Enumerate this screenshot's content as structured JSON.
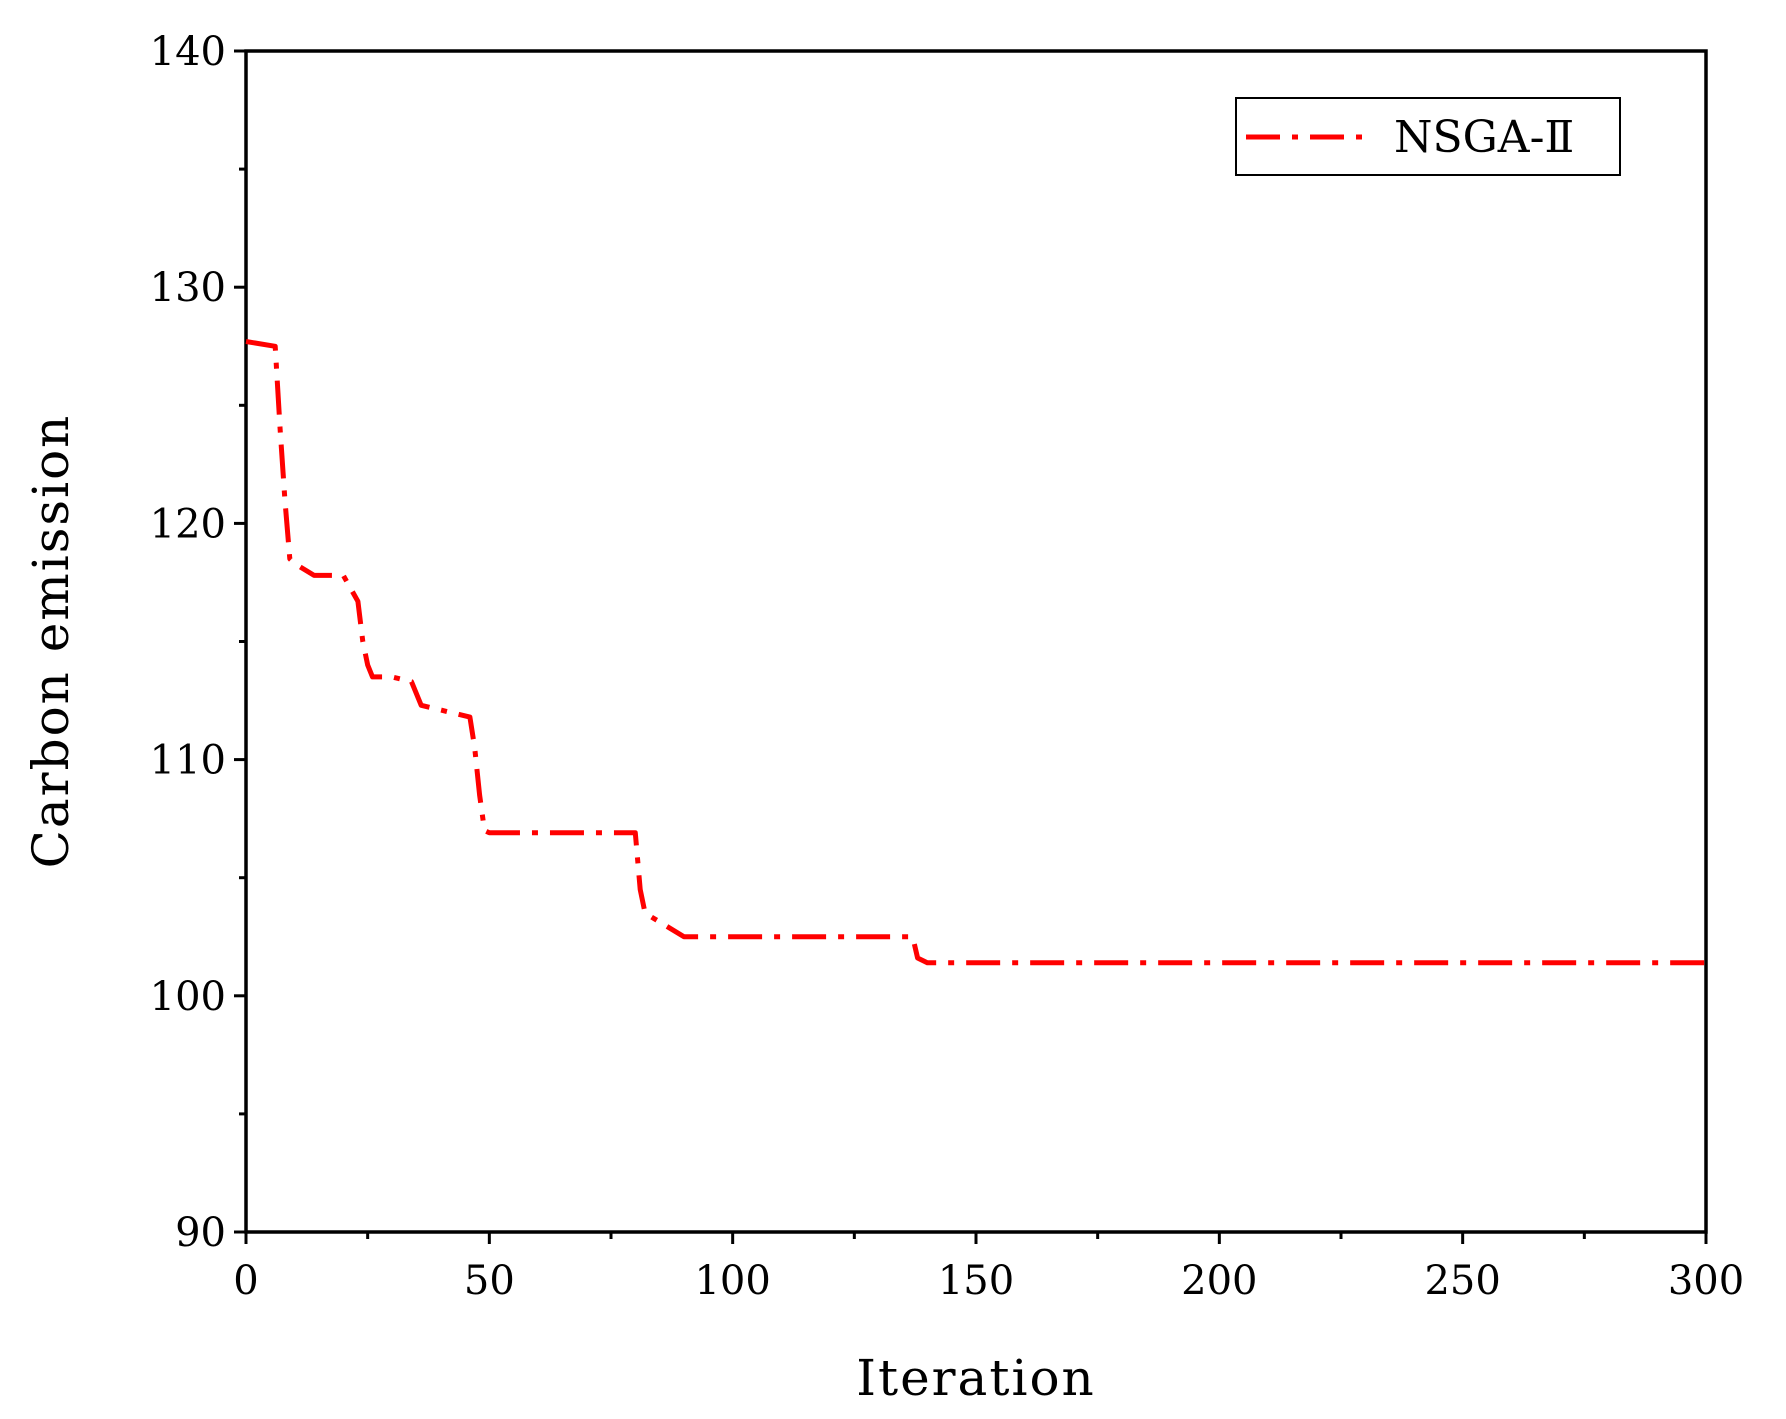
{
  "chart_data": {
    "type": "line",
    "title": "",
    "xlabel": "Iteration",
    "ylabel": "Carbon emission",
    "xlim": [
      0,
      300
    ],
    "ylim": [
      90,
      140
    ],
    "x_ticks": [
      0,
      50,
      100,
      150,
      200,
      250,
      300
    ],
    "y_ticks": [
      90,
      100,
      110,
      120,
      130,
      140
    ],
    "x_tick_labels": [
      "0",
      "50",
      "100",
      "150",
      "200",
      "250",
      "300"
    ],
    "y_tick_labels": [
      "90",
      "100",
      "110",
      "120",
      "130",
      "140"
    ],
    "grid": false,
    "legend_position": "top-right",
    "series": [
      {
        "name": "NSGA-Ⅱ",
        "color": "#ff0000",
        "line_style": "dash-dot",
        "x": [
          0,
          6,
          7,
          8,
          9,
          10,
          14,
          20,
          23,
          24,
          25,
          26,
          30,
          34,
          36,
          40,
          46,
          47,
          48,
          49,
          50,
          55,
          70,
          80,
          81,
          82,
          86,
          90,
          100,
          120,
          137,
          138,
          140,
          150,
          200,
          250,
          300
        ],
        "y": [
          127.7,
          127.5,
          124,
          121,
          118.5,
          118.3,
          117.8,
          117.8,
          116.7,
          115,
          114,
          113.5,
          113.5,
          113.3,
          112.3,
          112.1,
          111.8,
          110.5,
          108.5,
          107.0,
          106.9,
          106.9,
          106.9,
          106.9,
          104.5,
          103.5,
          103.0,
          102.5,
          102.5,
          102.5,
          102.5,
          101.6,
          101.4,
          101.4,
          101.4,
          101.4,
          101.4
        ]
      }
    ]
  }
}
